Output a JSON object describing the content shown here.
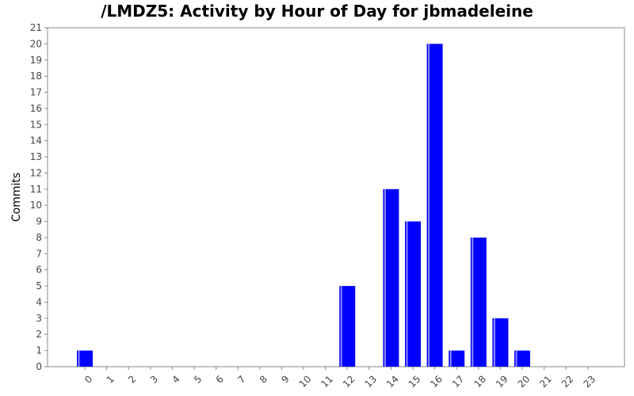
{
  "chart_data": {
    "type": "bar",
    "title": "/LMDZ5: Activity by Hour of Day for jbmadeleine",
    "xlabel": "",
    "ylabel": "Commits",
    "categories": [
      "0",
      "1",
      "2",
      "3",
      "4",
      "5",
      "6",
      "7",
      "8",
      "9",
      "10",
      "11",
      "12",
      "13",
      "14",
      "15",
      "16",
      "17",
      "18",
      "19",
      "20",
      "21",
      "22",
      "23"
    ],
    "values": [
      1,
      0,
      0,
      0,
      0,
      0,
      0,
      0,
      0,
      0,
      0,
      0,
      5,
      0,
      11,
      9,
      20,
      1,
      8,
      3,
      1,
      0,
      0,
      0
    ],
    "ylim": [
      0,
      21
    ],
    "yticks": [
      0,
      1,
      2,
      3,
      4,
      5,
      6,
      7,
      8,
      9,
      10,
      11,
      12,
      13,
      14,
      15,
      16,
      17,
      18,
      19,
      20,
      21
    ],
    "grid": false,
    "legend": "none",
    "bar_color": "#0000ff",
    "bar_highlight_color": "#8c8cff"
  }
}
